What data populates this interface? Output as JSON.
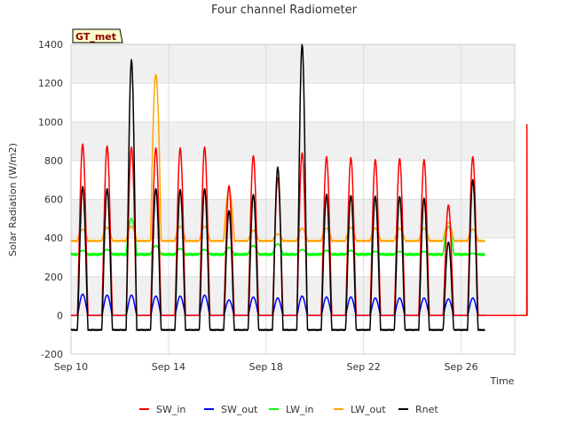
{
  "chart_data": {
    "type": "line",
    "title": "Four channel Radiometer",
    "xlabel": "Time",
    "ylabel": "Solar Radiation (W/m2)",
    "badge": "GT_met",
    "xlim": [
      0,
      18.2
    ],
    "ylim": [
      -200,
      1400
    ],
    "x_tick_values": [
      0,
      4,
      8,
      12,
      16
    ],
    "x_tick_labels": [
      "Sep 10",
      "Sep 14",
      "Sep 18",
      "Sep 22",
      "Sep 26"
    ],
    "y_ticks": [
      -200,
      0,
      200,
      400,
      600,
      800,
      1000,
      1200,
      1400
    ],
    "grid": true,
    "legend_position": "bottom",
    "x_unit": "days since Sep 10",
    "series": [
      {
        "name": "SW_in",
        "color": "#ff0000",
        "day_peaks": [
          885,
          875,
          870,
          865,
          865,
          870,
          670,
          825,
          710,
          840,
          820,
          815,
          805,
          810,
          805,
          570,
          820
        ],
        "spikes": [
          [
            18.7,
            985
          ]
        ]
      },
      {
        "name": "SW_out",
        "color": "#0000ff",
        "day_peaks": [
          110,
          105,
          105,
          100,
          100,
          105,
          80,
          95,
          90,
          100,
          95,
          95,
          90,
          90,
          90,
          85,
          90
        ]
      },
      {
        "name": "LW_in",
        "color": "#00ff00",
        "baseline": 315,
        "day_peaks": [
          335,
          340,
          500,
          360,
          345,
          340,
          350,
          360,
          370,
          340,
          335,
          335,
          330,
          330,
          330,
          460,
          320
        ]
      },
      {
        "name": "LW_out",
        "color": "#ffa500",
        "baseline": 385,
        "day_peaks": [
          445,
          455,
          460,
          1245,
          460,
          460,
          650,
          440,
          420,
          450,
          450,
          455,
          450,
          450,
          450,
          480,
          445
        ]
      },
      {
        "name": "Rnet",
        "color": "#000000",
        "night_value": -75,
        "day_peaks": [
          665,
          655,
          1320,
          655,
          650,
          655,
          540,
          625,
          765,
          1400,
          625,
          620,
          615,
          615,
          605,
          380,
          700
        ]
      }
    ]
  }
}
